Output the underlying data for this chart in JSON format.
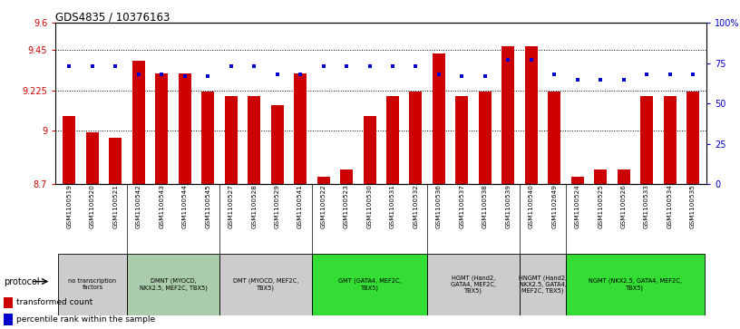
{
  "title": "GDS4835 / 10376163",
  "samples": [
    "GSM1100519",
    "GSM1100520",
    "GSM1100521",
    "GSM1100542",
    "GSM1100543",
    "GSM1100544",
    "GSM1100545",
    "GSM1100527",
    "GSM1100528",
    "GSM1100529",
    "GSM1100541",
    "GSM1100522",
    "GSM1100523",
    "GSM1100530",
    "GSM1100531",
    "GSM1100532",
    "GSM1100536",
    "GSM1100537",
    "GSM1100538",
    "GSM1100539",
    "GSM1100540",
    "GSM1102649",
    "GSM1100524",
    "GSM1100525",
    "GSM1100526",
    "GSM1100533",
    "GSM1100534",
    "GSM1100535"
  ],
  "bar_values": [
    9.08,
    8.99,
    8.96,
    9.39,
    9.32,
    9.32,
    9.22,
    9.19,
    9.19,
    9.14,
    9.32,
    8.74,
    8.78,
    9.08,
    9.19,
    9.22,
    9.43,
    9.19,
    9.22,
    9.47,
    9.47,
    9.22,
    8.74,
    8.78,
    8.78,
    9.19,
    9.19,
    9.22
  ],
  "percentile_values": [
    73,
    73,
    73,
    68,
    68,
    67,
    67,
    73,
    73,
    68,
    68,
    73,
    73,
    73,
    73,
    73,
    68,
    67,
    67,
    77,
    77,
    68,
    65,
    65,
    65,
    68,
    68,
    68
  ],
  "bar_color": "#CC0000",
  "dot_color": "#0000CC",
  "ylim_left": [
    8.7,
    9.6
  ],
  "ylim_right": [
    0,
    100
  ],
  "yticks_left": [
    8.7,
    9.0,
    9.225,
    9.45,
    9.6
  ],
  "yticks_right": [
    0,
    25,
    50,
    75,
    100
  ],
  "ytick_labels_left": [
    "8.7",
    "9",
    "9.225",
    "9.45",
    "9.6"
  ],
  "ytick_labels_right": [
    "0",
    "25",
    "50",
    "75",
    "100%"
  ],
  "hlines": [
    9.0,
    9.225,
    9.45
  ],
  "protocols": [
    {
      "label": "no transcription\nfactors",
      "start": 0,
      "end": 3,
      "color": "#cccccc"
    },
    {
      "label": "DMNT (MYOCD,\nNKX2.5, MEF2C, TBX5)",
      "start": 3,
      "end": 7,
      "color": "#aaccaa"
    },
    {
      "label": "DMT (MYOCD, MEF2C,\nTBX5)",
      "start": 7,
      "end": 11,
      "color": "#cccccc"
    },
    {
      "label": "GMT (GATA4, MEF2C,\nTBX5)",
      "start": 11,
      "end": 16,
      "color": "#33dd33"
    },
    {
      "label": "HGMT (Hand2,\nGATA4, MEF2C,\nTBX5)",
      "start": 16,
      "end": 20,
      "color": "#cccccc"
    },
    {
      "label": "HNGMT (Hand2,\nNKX2.5, GATA4,\nMEF2C, TBX5)",
      "start": 20,
      "end": 22,
      "color": "#cccccc"
    },
    {
      "label": "NGMT (NKX2.5, GATA4, MEF2C,\nTBX5)",
      "start": 22,
      "end": 28,
      "color": "#33dd33"
    }
  ],
  "bar_color_legend": "#CC0000",
  "dot_color_legend": "#0000CC",
  "left_label_color": "#CC0000",
  "right_label_color": "#0000CC",
  "legend_tc": "transformed count",
  "legend_pr": "percentile rank within the sample"
}
